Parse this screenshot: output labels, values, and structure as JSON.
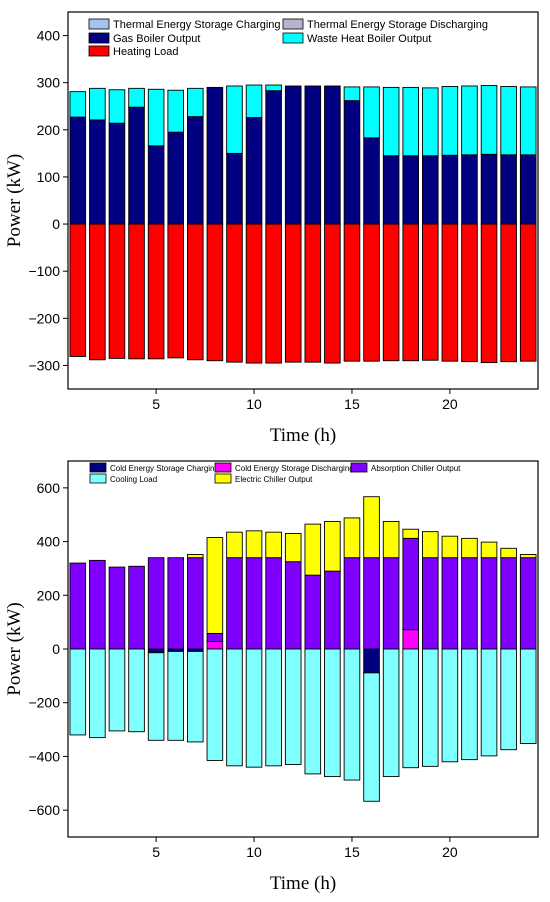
{
  "chart_data": [
    {
      "type": "bar",
      "stacked": true,
      "xlabel": "Time (h)",
      "ylabel": "Power (kW)",
      "ylim": [
        -350,
        450
      ],
      "xlim": [
        0.5,
        24.5
      ],
      "xticks": [
        5,
        10,
        15,
        20
      ],
      "yticks": [
        -300,
        -200,
        -100,
        0,
        100,
        200,
        300,
        400
      ],
      "x": [
        1,
        2,
        3,
        4,
        5,
        6,
        7,
        8,
        9,
        10,
        11,
        12,
        13,
        14,
        15,
        16,
        17,
        18,
        19,
        20,
        21,
        22,
        23,
        24
      ],
      "legend_position": "top-left",
      "series": [
        {
          "name": "Thermal Energy Storage Charging",
          "color": "#a3c4ee",
          "values": [
            0,
            0,
            0,
            0,
            0,
            0,
            0,
            0,
            0,
            0,
            0,
            0,
            0,
            0,
            0,
            0,
            0,
            0,
            0,
            0,
            0,
            0,
            0,
            0
          ]
        },
        {
          "name": "Thermal Energy Storage Discharging",
          "color": "#b8b2cf",
          "values": [
            0,
            0,
            0,
            0,
            0,
            0,
            0,
            0,
            0,
            0,
            0,
            0,
            0,
            0,
            0,
            0,
            0,
            0,
            0,
            0,
            0,
            0,
            0,
            0
          ]
        },
        {
          "name": "Gas Boiler Output",
          "color": "#000080",
          "values": [
            227,
            221,
            214,
            248,
            166,
            195,
            228,
            290,
            150,
            226,
            283,
            293,
            293,
            293,
            262,
            183,
            145,
            145,
            145,
            146,
            147,
            148,
            147,
            147
          ]
        },
        {
          "name": "Heating Load",
          "color": "#ff0000",
          "values": [
            -281,
            -288,
            -285,
            -286,
            -286,
            -284,
            -288,
            -290,
            -293,
            -295,
            -295,
            -293,
            -293,
            -295,
            -291,
            -291,
            -290,
            -290,
            -289,
            -291,
            -292,
            -294,
            -292,
            -291
          ]
        },
        {
          "name": "Waste Heat Boiler Output",
          "color": "#00ffff",
          "values": [
            54,
            67,
            71,
            40,
            120,
            89,
            60,
            0,
            143,
            69,
            12,
            0,
            0,
            0,
            29,
            108,
            145,
            145,
            144,
            146,
            146,
            146,
            145,
            144
          ]
        }
      ]
    },
    {
      "type": "bar",
      "stacked": true,
      "xlabel": "Time (h)",
      "ylabel": "Power (kW)",
      "ylim": [
        -700,
        700
      ],
      "xlim": [
        0.5,
        24.5
      ],
      "xticks": [
        5,
        10,
        15,
        20
      ],
      "yticks": [
        -600,
        -400,
        -200,
        0,
        200,
        400,
        600
      ],
      "x": [
        1,
        2,
        3,
        4,
        5,
        6,
        7,
        8,
        9,
        10,
        11,
        12,
        13,
        14,
        15,
        16,
        17,
        18,
        19,
        20,
        21,
        22,
        23,
        24
      ],
      "legend_position": "top",
      "series": [
        {
          "name": "Cold Energy Storage Charging",
          "color": "#000080",
          "values": [
            0,
            0,
            0,
            0,
            -14,
            -9,
            -9,
            0,
            0,
            0,
            0,
            0,
            0,
            0,
            0,
            -89,
            0,
            0,
            0,
            0,
            0,
            0,
            0,
            0
          ]
        },
        {
          "name": "Cold Energy Storage Discharging",
          "color": "#ff00ff",
          "values": [
            0,
            0,
            0,
            0,
            0,
            0,
            0,
            28,
            0,
            0,
            0,
            0,
            0,
            0,
            0,
            0,
            0,
            72,
            0,
            0,
            0,
            0,
            0,
            0
          ]
        },
        {
          "name": "Absorption Chiller Output",
          "color": "#8000ff",
          "values": [
            320,
            330,
            305,
            308,
            340,
            340,
            340,
            30,
            340,
            340,
            340,
            325,
            275,
            290,
            340,
            340,
            340,
            340,
            340,
            340,
            340,
            340,
            340,
            340
          ]
        },
        {
          "name": "Cooling Load",
          "color": "#80ffff",
          "values": [
            -320,
            -330,
            -305,
            -308,
            -326,
            -331,
            -337,
            -415,
            -435,
            -440,
            -435,
            -430,
            -465,
            -475,
            -488,
            -478,
            -475,
            -442,
            -437,
            -420,
            -412,
            -398,
            -375,
            -352
          ]
        },
        {
          "name": "Electric Chiller Output",
          "color": "#ffff00",
          "values": [
            0,
            0,
            0,
            0,
            0,
            0,
            12,
            357,
            95,
            100,
            95,
            105,
            190,
            185,
            148,
            227,
            135,
            34,
            97,
            80,
            72,
            58,
            35,
            12
          ]
        }
      ]
    }
  ]
}
